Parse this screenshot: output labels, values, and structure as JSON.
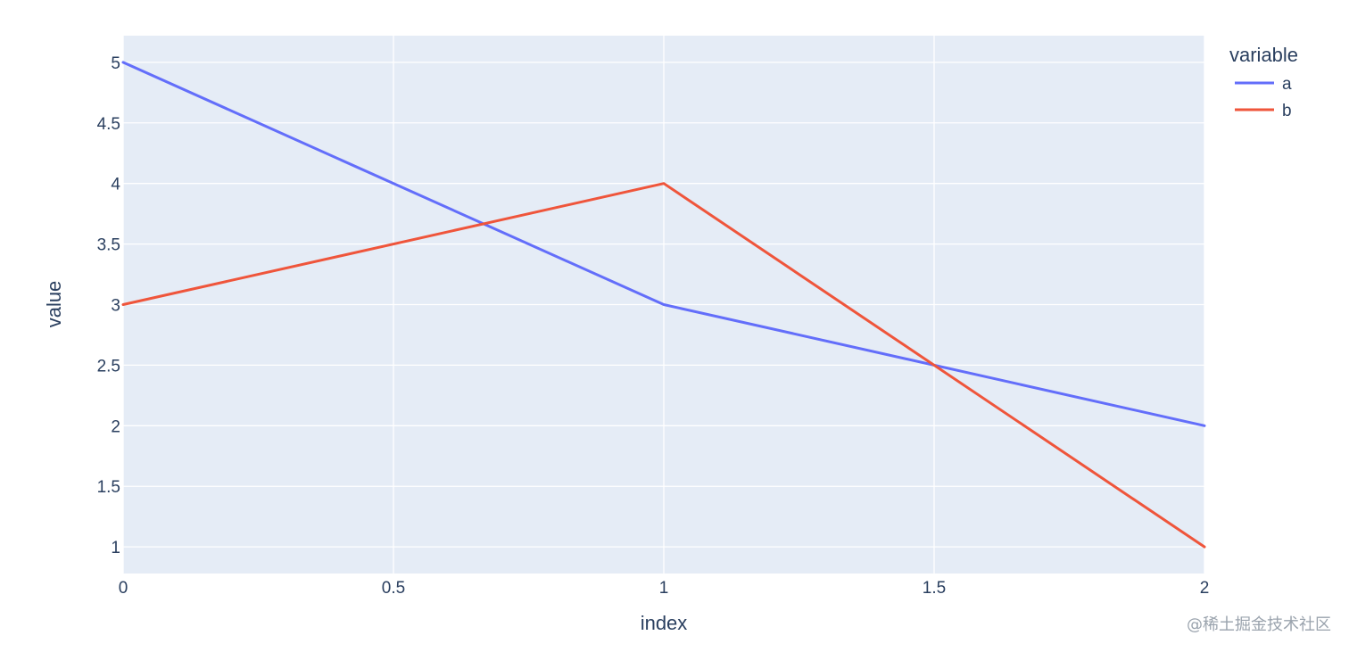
{
  "chart_data": {
    "type": "line",
    "xlabel": "index",
    "ylabel": "value",
    "x": [
      0,
      1,
      2
    ],
    "xlim": [
      0,
      2
    ],
    "ylim": [
      0.78,
      5.22
    ],
    "x_ticks": [
      "0",
      "0.5",
      "1",
      "1.5",
      "2"
    ],
    "x_tick_values": [
      0,
      0.5,
      1,
      1.5,
      2
    ],
    "y_ticks": [
      "1",
      "1.5",
      "2",
      "2.5",
      "3",
      "3.5",
      "4",
      "4.5",
      "5"
    ],
    "y_tick_values": [
      1,
      1.5,
      2,
      2.5,
      3,
      3.5,
      4,
      4.5,
      5
    ],
    "grid": true,
    "legend": {
      "title": "variable",
      "placement": "top-right, outside plot"
    },
    "series": [
      {
        "name": "a",
        "values": [
          5,
          3,
          2
        ],
        "color": "#636efa"
      },
      {
        "name": "b",
        "values": [
          3,
          4,
          1
        ],
        "color": "#ef553b"
      }
    ],
    "plot_background": "#e5ecf6",
    "grid_color": "#ffffff"
  },
  "watermark": "@稀土掘金技术社区"
}
